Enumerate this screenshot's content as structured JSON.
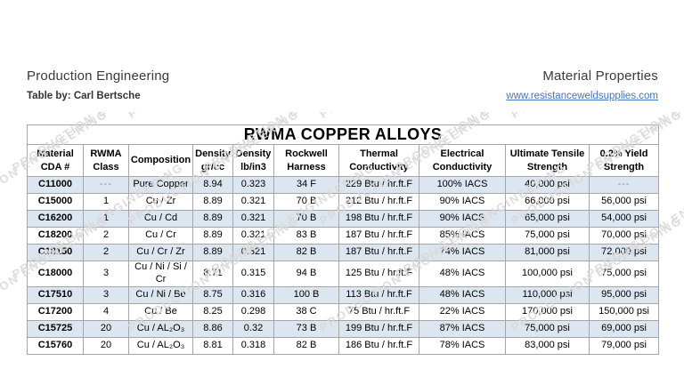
{
  "header": {
    "title_left": "Production Engineering",
    "title_right": "Material Properties",
    "byline": "Table by: Carl Bertsche",
    "link": "www.resistanceweldsupplies.com"
  },
  "watermark": {
    "text": "PRODUCTION ENGINEERING"
  },
  "table": {
    "title": "RWMA COPPER ALLOYS",
    "columns": [
      "Material CDA #",
      "RWMA Class",
      "Composition",
      "Density gr/cc",
      "Density lb/in3",
      "Rockwell Harness",
      "Thermal Conductivity",
      "Electrical Conductivity",
      "Ultimate Tensile Strength",
      "0.2% Yield Strength"
    ],
    "rows": [
      [
        "C11000",
        "---",
        "Pure Copper",
        "8.94",
        "0.323",
        "34 F",
        "229 Btu / hr.ft.F",
        "100% IACS",
        "40,000 psi",
        "---"
      ],
      [
        "C15000",
        "1",
        "Cu / Zr",
        "8.89",
        "0.321",
        "70 B",
        "212 Btu / hr.ft.F",
        "90% IACS",
        "66,000 psi",
        "56,000 psi"
      ],
      [
        "C16200",
        "1",
        "Cu / Cd",
        "8.89",
        "0.321",
        "70 B",
        "198 Btu / hr.ft.F",
        "90% IACS",
        "65,000 psi",
        "54,000 psi"
      ],
      [
        "C18200",
        "2",
        "Cu / Cr",
        "8.89",
        "0.321",
        "83 B",
        "187 Btu / hr.ft.F",
        "85% IACS",
        "75,000 psi",
        "70,000 psi"
      ],
      [
        "C18150",
        "2",
        "Cu / Cr / Zr",
        "8.89",
        "0.321",
        "82 B",
        "187 Btu / hr.ft.F",
        "74% IACS",
        "81,000 psi",
        "72,000 psi"
      ],
      [
        "C18000",
        "3",
        "Cu / Ni / Si / Cr",
        "8.71",
        "0.315",
        "94 B",
        "125 Btu / hr.ft.F",
        "48% IACS",
        "100,000 psi",
        "75,000 psi"
      ],
      [
        "C17510",
        "3",
        "Cu / Ni / Be",
        "8.75",
        "0.316",
        "100 B",
        "113 Btu / hr.ft.F",
        "48% IACS",
        "110,000 psi",
        "95,000 psi"
      ],
      [
        "C17200",
        "4",
        "Cu / Be",
        "8.25",
        "0.298",
        "38 C",
        "75 Btu / hr.ft.F",
        "22% IACS",
        "170,000 psi",
        "150,000 psi"
      ],
      [
        "C15725",
        "20",
        "Cu / AL₂O₃",
        "8.86",
        "0.32",
        "73 B",
        "199 Btu / hr.ft.F",
        "87% IACS",
        "75,000 psi",
        "69,000 psi"
      ],
      [
        "C15760",
        "20",
        "Cu / AL₂O₃",
        "8.81",
        "0.318",
        "82 B",
        "186 Btu / hr.ft.F",
        "78% IACS",
        "83,000 psi",
        "79,000 psi"
      ]
    ]
  },
  "colors": {
    "row_alt": "#dce6f1",
    "border": "#a6a6a6",
    "link": "#4472c4",
    "watermark": "#d9d9d9"
  }
}
